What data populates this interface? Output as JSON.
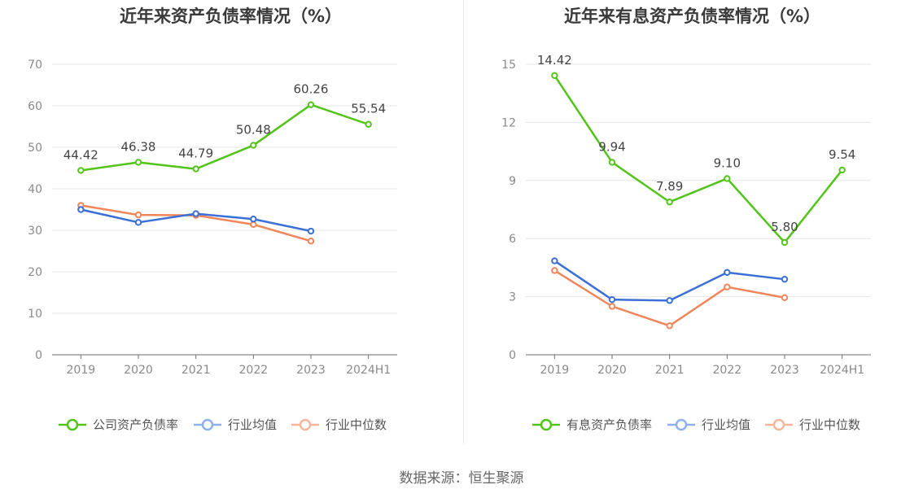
{
  "source_text": "数据来源：恒生聚源",
  "chart_data": [
    {
      "type": "line",
      "title": "近年来资产负债率情况（%）",
      "categories": [
        "2019",
        "2020",
        "2021",
        "2022",
        "2023",
        "2024H1"
      ],
      "ylim": [
        0,
        70
      ],
      "yticks": [
        0,
        10,
        20,
        30,
        40,
        50,
        60,
        70
      ],
      "grid": true,
      "legend_position": "bottom",
      "series": [
        {
          "name": "公司资产负债率",
          "color": "#52c41a",
          "show_labels": true,
          "values": [
            44.42,
            46.38,
            44.79,
            50.48,
            60.26,
            55.54
          ],
          "labels": [
            "44.42",
            "46.38",
            "44.79",
            "50.48",
            "60.26",
            "55.54"
          ]
        },
        {
          "name": "行业均值",
          "color": "#3b6fd8",
          "show_labels": false,
          "values": [
            35.0,
            31.9,
            34.0,
            32.7,
            29.8,
            null
          ]
        },
        {
          "name": "行业中位数",
          "color": "#f0855a",
          "show_labels": false,
          "values": [
            36.0,
            33.7,
            33.6,
            31.4,
            27.4,
            null
          ]
        }
      ]
    },
    {
      "type": "line",
      "title": "近年来有息资产负债率情况（%）",
      "categories": [
        "2019",
        "2020",
        "2021",
        "2022",
        "2023",
        "2024H1"
      ],
      "ylim": [
        0,
        15
      ],
      "yticks": [
        0,
        3,
        6,
        9,
        12,
        15
      ],
      "grid": true,
      "legend_position": "bottom",
      "series": [
        {
          "name": "有息资产负债率",
          "color": "#52c41a",
          "show_labels": true,
          "values": [
            14.42,
            9.94,
            7.89,
            9.1,
            5.8,
            9.54
          ],
          "labels": [
            "14.42",
            "9.94",
            "7.89",
            "9.10",
            "5.80",
            "9.54"
          ]
        },
        {
          "name": "行业均值",
          "color": "#3b6fd8",
          "show_labels": false,
          "values": [
            4.85,
            2.85,
            2.8,
            4.25,
            3.9,
            null
          ]
        },
        {
          "name": "行业中位数",
          "color": "#f0855a",
          "show_labels": false,
          "values": [
            4.35,
            2.5,
            1.5,
            3.5,
            2.95,
            null
          ]
        }
      ]
    }
  ]
}
